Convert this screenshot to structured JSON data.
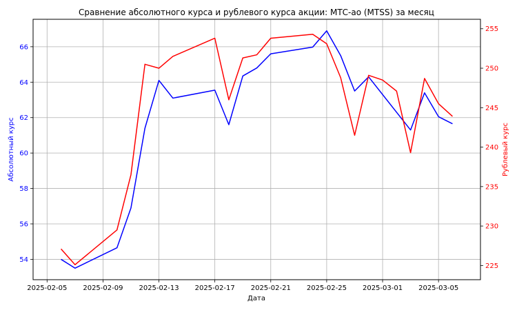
{
  "chart_data": {
    "type": "line",
    "title": "Сравнение абсолютного курса и рублевого курса акции: МТС-ао (MTSS) за месяц",
    "xlabel": "Дата",
    "ylabel_left": "Абсолютный курс",
    "ylabel_right": "Рублевый курс",
    "grid": true,
    "x_ticks": [
      "2025-02-05",
      "2025-02-09",
      "2025-02-13",
      "2025-02-17",
      "2025-02-21",
      "2025-02-25",
      "2025-03-01",
      "2025-03-05"
    ],
    "y_left_ticks": [
      54,
      56,
      58,
      60,
      62,
      64,
      66
    ],
    "y_right_ticks": [
      225,
      230,
      235,
      240,
      245,
      250,
      255
    ],
    "ylim_left": [
      52.85,
      67.55
    ],
    "ylim_right": [
      223.2,
      256.2
    ],
    "xlim": [
      "2025-02-04",
      "2025-03-08"
    ],
    "colors": {
      "left": "#0000ff",
      "right": "#ff0000"
    },
    "series": [
      {
        "axis": "left",
        "color": "#0000ff",
        "points": [
          [
            "2025-02-06",
            54.0
          ],
          [
            "2025-02-07",
            53.5
          ],
          [
            "2025-02-10",
            54.65
          ],
          [
            "2025-02-11",
            56.9
          ],
          [
            "2025-02-12",
            61.4
          ],
          [
            "2025-02-13",
            64.1
          ],
          [
            "2025-02-14",
            63.1
          ],
          [
            "2025-02-17",
            63.55
          ],
          [
            "2025-02-18",
            61.6
          ],
          [
            "2025-02-19",
            64.35
          ],
          [
            "2025-02-20",
            64.8
          ],
          [
            "2025-02-21",
            65.6
          ],
          [
            "2025-02-24",
            65.98
          ],
          [
            "2025-02-25",
            66.9
          ],
          [
            "2025-02-26",
            65.5
          ],
          [
            "2025-02-27",
            63.5
          ],
          [
            "2025-02-28",
            64.3
          ],
          [
            "2025-03-03",
            61.3
          ],
          [
            "2025-03-04",
            63.4
          ],
          [
            "2025-03-05",
            62.05
          ],
          [
            "2025-03-06",
            61.65
          ]
        ]
      },
      {
        "axis": "right",
        "color": "#ff0000",
        "points": [
          [
            "2025-02-06",
            227.1
          ],
          [
            "2025-02-07",
            225.1
          ],
          [
            "2025-02-10",
            229.5
          ],
          [
            "2025-02-11",
            236.5
          ],
          [
            "2025-02-12",
            250.5
          ],
          [
            "2025-02-13",
            250.0
          ],
          [
            "2025-02-14",
            251.5
          ],
          [
            "2025-02-17",
            253.8
          ],
          [
            "2025-02-18",
            246.0
          ],
          [
            "2025-02-19",
            251.3
          ],
          [
            "2025-02-20",
            251.7
          ],
          [
            "2025-02-21",
            253.8
          ],
          [
            "2025-02-24",
            254.3
          ],
          [
            "2025-02-25",
            253.1
          ],
          [
            "2025-02-26",
            248.8
          ],
          [
            "2025-02-27",
            241.5
          ],
          [
            "2025-02-28",
            249.1
          ],
          [
            "2025-03-01",
            248.5
          ],
          [
            "2025-03-02",
            247.1
          ],
          [
            "2025-03-03",
            239.3
          ],
          [
            "2025-03-04",
            248.7
          ],
          [
            "2025-03-05",
            245.5
          ],
          [
            "2025-03-06",
            243.9
          ]
        ]
      }
    ]
  }
}
